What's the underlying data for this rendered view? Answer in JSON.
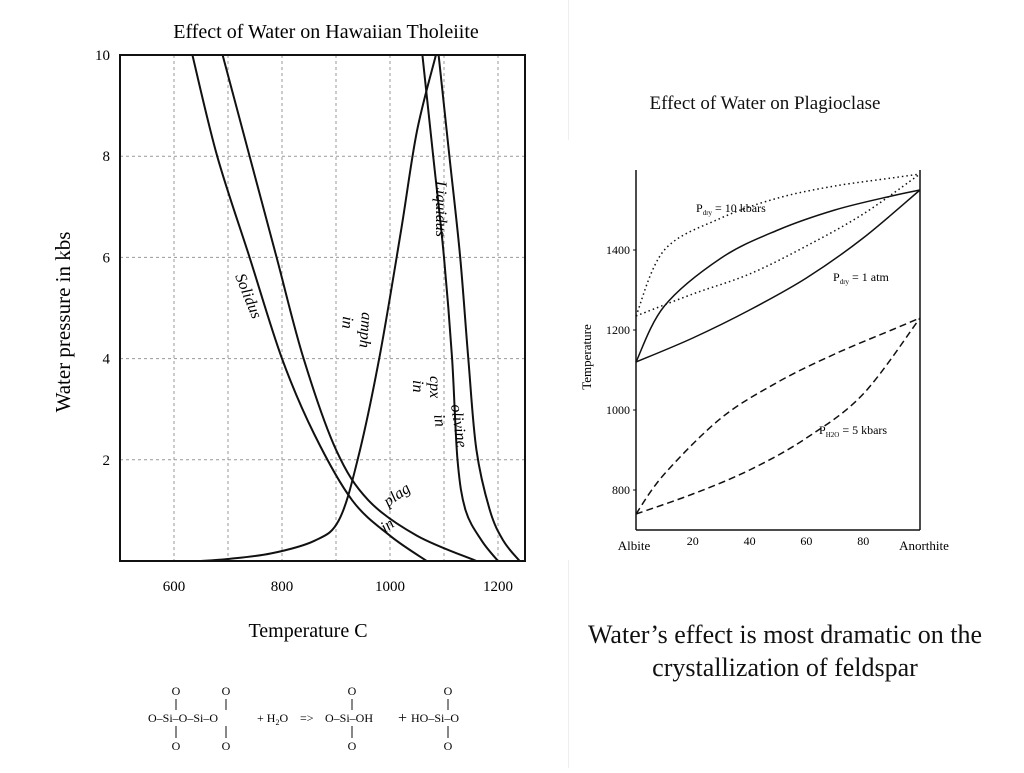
{
  "slide": {
    "right_title": "Effect of Water on Plagioclase",
    "caption": "Water’s effect is most dramatic on the crystallization of feldspar"
  },
  "chart_data": [
    {
      "type": "line",
      "title": "Effect of Water on Hawaiian Tholeiite",
      "xlabel": "Temperature C",
      "ylabel": "Water pressure in kbs",
      "xlim": [
        500,
        1250
      ],
      "ylim": [
        0,
        10
      ],
      "x_ticks": [
        600,
        800,
        1000,
        1200
      ],
      "y_ticks": [
        2,
        4,
        6,
        8,
        10
      ],
      "grid": true,
      "series": [
        {
          "name": "Solidus",
          "x": [
            634,
            680,
            740,
            800,
            860,
            930,
            1000,
            1068
          ],
          "y": [
            10,
            8,
            6,
            4,
            2.5,
            1.2,
            0.5,
            0
          ]
        },
        {
          "name": "plag in",
          "x": [
            690,
            740,
            790,
            840,
            900,
            960,
            1050,
            1160
          ],
          "y": [
            10,
            8,
            6,
            4,
            2.2,
            1.2,
            0.5,
            0
          ]
        },
        {
          "name": "amph in",
          "x": [
            650,
            700,
            780,
            860,
            905,
            940,
            980,
            1020,
            1050,
            1085
          ],
          "y": [
            0,
            0.04,
            0.15,
            0.4,
            0.8,
            2,
            4,
            6.5,
            8.5,
            10
          ]
        },
        {
          "name": "cpx in",
          "x": [
            1060,
            1080,
            1100,
            1115,
            1125,
            1140,
            1170,
            1200
          ],
          "y": [
            10,
            8,
            6,
            4,
            2,
            1,
            0.4,
            0
          ]
        },
        {
          "name": "olivine in",
          "x": [
            1090,
            1110,
            1130,
            1145,
            1160,
            1185,
            1210,
            1240
          ],
          "y": [
            10,
            8,
            6,
            4,
            2.2,
            1,
            0.4,
            0
          ]
        }
      ],
      "annotations": [
        "Solidus",
        "amph",
        "in",
        "Liquidus",
        "cpx",
        "in",
        "olivine",
        "in",
        "plag",
        "in"
      ]
    },
    {
      "type": "line",
      "title": "Effect of Water on Plagioclase",
      "xlabel": "",
      "ylabel": "Temperature",
      "xlim": [
        0,
        100
      ],
      "ylim": [
        700,
        1600
      ],
      "x_ticks": [
        20,
        40,
        60,
        80
      ],
      "x_end_labels": [
        "Albite",
        "Anorthite"
      ],
      "y_ticks": [
        800,
        1000,
        1200,
        1400
      ],
      "grid": false,
      "series": [
        {
          "name": "Pdry = 10 kbars",
          "style": "dotted",
          "x": [
            0,
            10,
            30,
            50,
            70,
            90,
            100
          ],
          "y": [
            1235,
            1400,
            1480,
            1530,
            1560,
            1580,
            1590
          ]
        },
        {
          "name": "Pdry = 10 kbars",
          "style": "dotted",
          "x": [
            0,
            20,
            40,
            60,
            80,
            100
          ],
          "y": [
            1235,
            1290,
            1340,
            1410,
            1490,
            1590
          ]
        },
        {
          "name": "Pdry = 1 atm",
          "style": "solid",
          "x": [
            0,
            10,
            30,
            50,
            70,
            90,
            100
          ],
          "y": [
            1120,
            1260,
            1380,
            1450,
            1500,
            1535,
            1550
          ]
        },
        {
          "name": "Pdry = 1 atm",
          "style": "solid",
          "x": [
            0,
            20,
            40,
            60,
            80,
            100
          ],
          "y": [
            1120,
            1180,
            1250,
            1330,
            1430,
            1550
          ]
        },
        {
          "name": "PH2O = 5 kbars",
          "style": "dashed",
          "x": [
            0,
            10,
            30,
            50,
            70,
            90,
            100
          ],
          "y": [
            740,
            840,
            980,
            1070,
            1140,
            1200,
            1230
          ]
        },
        {
          "name": "PH2O = 5 kbars",
          "style": "dashed",
          "x": [
            0,
            20,
            40,
            60,
            80,
            100
          ],
          "y": [
            740,
            790,
            850,
            930,
            1040,
            1230
          ]
        }
      ],
      "labels": [
        {
          "base": "P",
          "sub": "dry",
          "rest": " = 10 kbars"
        },
        {
          "base": "P",
          "sub": "dry",
          "rest": " = 1 atm"
        },
        {
          "base": "P",
          "sub": "H2O",
          "rest": " = 5 kbars"
        }
      ]
    }
  ],
  "equation": {
    "left_tokens": [
      "O",
      "O",
      "O–Si–O–Si–O",
      "O",
      "O"
    ],
    "plus1": "+ H",
    "sub2": "2",
    "o": "O",
    "arrow": "=>",
    "mid": "O–Si–OH",
    "plus2": "+",
    "right": "HO–Si–O",
    "o_top": "O",
    "o_bottom": "O"
  }
}
